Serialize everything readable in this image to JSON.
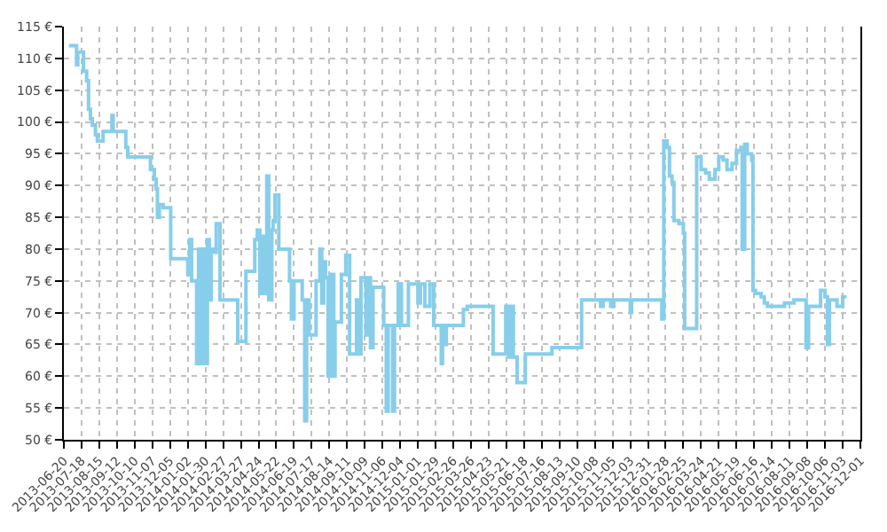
{
  "chart_data": {
    "type": "step",
    "color": "#87ceeb",
    "grid": true,
    "marker": "none",
    "line_style": "solid",
    "xlim": [
      "2013-06-20",
      "2016-12-01"
    ],
    "xticks": [
      "2013-06-20",
      "2013-07-18",
      "2013-08-15",
      "2013-09-12",
      "2013-10-10",
      "2013-11-07",
      "2013-12-05",
      "2014-01-02",
      "2014-01-30",
      "2014-02-27",
      "2014-03-27",
      "2014-04-24",
      "2014-05-22",
      "2014-06-19",
      "2014-07-17",
      "2014-08-14",
      "2014-09-11",
      "2014-10-09",
      "2014-11-06",
      "2014-12-04",
      "2015-01-01",
      "2015-01-29",
      "2015-02-26",
      "2015-03-26",
      "2015-04-23",
      "2015-05-21",
      "2015-06-18",
      "2015-07-16",
      "2015-08-13",
      "2015-09-10",
      "2015-10-08",
      "2015-11-05",
      "2015-12-03",
      "2015-12-31",
      "2016-01-28",
      "2016-02-25",
      "2016-03-24",
      "2016-04-21",
      "2016-05-19",
      "2016-06-16",
      "2016-07-14",
      "2016-08-11",
      "2016-09-08",
      "2016-10-06",
      "2016-11-03",
      "2016-12-01"
    ],
    "ylim": [
      50,
      115
    ],
    "yticks": [
      {
        "value": 50,
        "label": "50 €"
      },
      {
        "value": 55,
        "label": "55 €"
      },
      {
        "value": 60,
        "label": "60 €"
      },
      {
        "value": 65,
        "label": "65 €"
      },
      {
        "value": 70,
        "label": "70 €"
      },
      {
        "value": 75,
        "label": "75 €"
      },
      {
        "value": 80,
        "label": "80 €"
      },
      {
        "value": 85,
        "label": "85 €"
      },
      {
        "value": 90,
        "label": "90 €"
      },
      {
        "value": 95,
        "label": "95 €"
      },
      {
        "value": 100,
        "label": "100 €"
      },
      {
        "value": 105,
        "label": "105 €"
      },
      {
        "value": 110,
        "label": "110 €"
      },
      {
        "value": 115,
        "label": "115 €"
      }
    ],
    "x": [
      "2013-06-28",
      "2013-07-10",
      "2013-07-12",
      "2013-07-21",
      "2013-07-26",
      "2013-07-29",
      "2013-08-01",
      "2013-08-04",
      "2013-08-09",
      "2013-08-12",
      "2013-08-21",
      "2013-09-04",
      "2013-09-06",
      "2013-09-26",
      "2013-09-29",
      "2013-11-04",
      "2013-11-10",
      "2013-11-13",
      "2013-11-15",
      "2013-11-18",
      "2013-11-24",
      "2013-12-06",
      "2014-01-02",
      "2014-01-05",
      "2014-01-08",
      "2014-01-16",
      "2014-01-19",
      "2014-01-23",
      "2014-01-26",
      "2014-01-30",
      "2014-02-02",
      "2014-02-05",
      "2014-02-08",
      "2014-02-12",
      "2014-02-16",
      "2014-02-22",
      "2014-03-22",
      "2014-04-04",
      "2014-04-18",
      "2014-04-22",
      "2014-04-26",
      "2014-04-30",
      "2014-05-03",
      "2014-05-07",
      "2014-05-10",
      "2014-05-15",
      "2014-05-17",
      "2014-05-20",
      "2014-05-26",
      "2014-06-12",
      "2014-06-15",
      "2014-06-19",
      "2014-07-02",
      "2014-07-06",
      "2014-07-09",
      "2014-07-13",
      "2014-07-24",
      "2014-07-30",
      "2014-08-02",
      "2014-08-05",
      "2014-08-08",
      "2014-08-12",
      "2014-08-16",
      "2014-08-21",
      "2014-08-23",
      "2014-09-02",
      "2014-09-09",
      "2014-09-15",
      "2014-09-26",
      "2014-09-30",
      "2014-10-03",
      "2014-10-11",
      "2014-10-15",
      "2014-10-18",
      "2014-10-22",
      "2014-11-08",
      "2014-11-12",
      "2014-11-15",
      "2014-11-22",
      "2014-11-25",
      "2014-12-01",
      "2014-12-06",
      "2014-12-17",
      "2015-01-01",
      "2015-01-05",
      "2015-01-12",
      "2015-01-20",
      "2015-01-26",
      "2015-02-07",
      "2015-02-09",
      "2015-02-12",
      "2015-02-15",
      "2015-03-14",
      "2015-03-20",
      "2015-04-30",
      "2015-05-20",
      "2015-05-25",
      "2015-05-28",
      "2015-06-01",
      "2015-06-07",
      "2015-06-20",
      "2015-08-01",
      "2015-09-17",
      "2015-10-17",
      "2015-10-21",
      "2015-11-02",
      "2015-11-07",
      "2015-12-03",
      "2015-12-05",
      "2016-01-22",
      "2016-01-25",
      "2016-01-30",
      "2016-02-03",
      "2016-02-07",
      "2016-02-10",
      "2016-02-18",
      "2016-02-25",
      "2016-02-27",
      "2016-03-17",
      "2016-03-24",
      "2016-03-31",
      "2016-04-06",
      "2016-04-15",
      "2016-04-21",
      "2016-04-28",
      "2016-05-04",
      "2016-05-12",
      "2016-05-19",
      "2016-05-26",
      "2016-05-28",
      "2016-06-01",
      "2016-06-05",
      "2016-06-12",
      "2016-06-14",
      "2016-06-18",
      "2016-06-27",
      "2016-07-02",
      "2016-07-07",
      "2016-07-16",
      "2016-08-03",
      "2016-08-18",
      "2016-09-06",
      "2016-09-10",
      "2016-09-29",
      "2016-10-06",
      "2016-10-10",
      "2016-10-13",
      "2016-10-25",
      "2016-11-03",
      "2016-11-09"
    ],
    "values": [
      112,
      109,
      111,
      108,
      106.5,
      102,
      100.5,
      99.5,
      98,
      97,
      98.5,
      101,
      98.5,
      96,
      94.5,
      92.5,
      91,
      89.5,
      85,
      87,
      86.5,
      78.5,
      76,
      81.5,
      75,
      62,
      80,
      62,
      80,
      62,
      81.5,
      72,
      80,
      79.5,
      84,
      72,
      65.5,
      76.5,
      81.5,
      83,
      73,
      82,
      73,
      91.5,
      72,
      83,
      84.5,
      88.5,
      80,
      75,
      69,
      75,
      72,
      53,
      72,
      66.5,
      75,
      80,
      71.5,
      78,
      75.5,
      60,
      76,
      60,
      68.5,
      76,
      79,
      63.5,
      72,
      63.5,
      75.5,
      66.5,
      75.5,
      64.5,
      74,
      68,
      54.5,
      68,
      54.5,
      68,
      74.5,
      68,
      74.5,
      71.5,
      74.5,
      71,
      74.5,
      68,
      62,
      68,
      65,
      68,
      70.5,
      71,
      63.5,
      71,
      63,
      71,
      63,
      59,
      63.5,
      64.5,
      72,
      71,
      72,
      71,
      72,
      70,
      72,
      69,
      97,
      96,
      91.5,
      90.5,
      84.5,
      84,
      82.5,
      67.5,
      94.5,
      92.5,
      92,
      91,
      92.5,
      94.5,
      94,
      92.5,
      93.5,
      95.5,
      96,
      80,
      96.5,
      95,
      94,
      73.5,
      73,
      72.5,
      71.5,
      71,
      71,
      71.5,
      72,
      64.5,
      71,
      73.5,
      72.5,
      65,
      72,
      71,
      72.5,
      72.5
    ]
  }
}
